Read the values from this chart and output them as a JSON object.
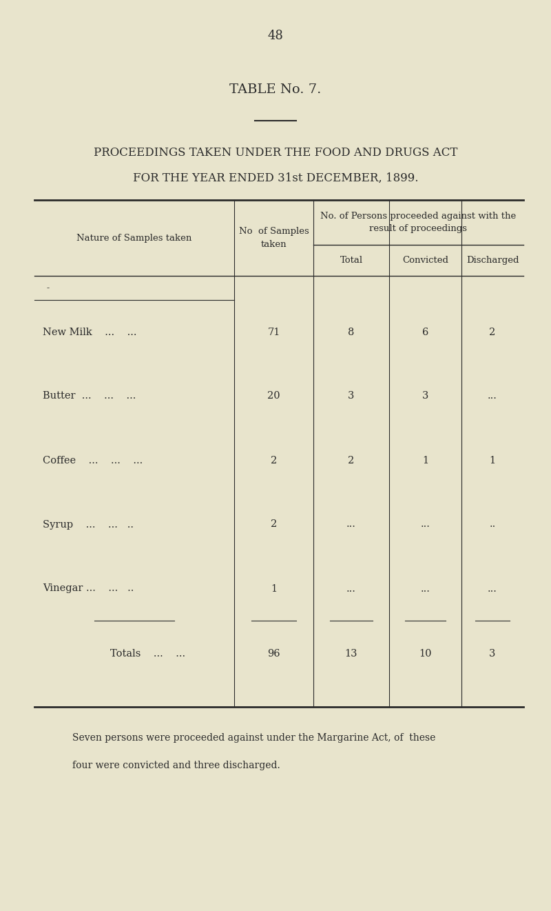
{
  "page_number": "48",
  "table_title": "TABLE No. 7.",
  "subtitle_line1": "PROCEEDINGS TAKEN UNDER THE FOOD AND DRUGS ACT",
  "subtitle_line2": "FOR THE YEAR ENDED 31st DECEMBER, 1899.",
  "col_header_1": "Nature of Samples taken",
  "col_header_2": "No  of Samples\ntaken",
  "col_header_3": "No. of Persons proceeded against with the\nresult of proceedings",
  "sub_header_total": "Total",
  "sub_header_convicted": "Convicted",
  "sub_header_discharged": "Discharged",
  "rows": [
    {
      "name": "New Milk",
      "dots1": "...",
      "dots2": "..",
      "samples": "71",
      "total": "8",
      "convicted": "6",
      "discharged": "2"
    },
    {
      "name": "Butter",
      "dots1": "..",
      "dots2": "...",
      "dots3": "...",
      "samples": "20",
      "total": "3",
      "convicted": "3",
      "discharged": "..."
    },
    {
      "name": "Coffee",
      "dots1": "...",
      "dots2": "...",
      "dots3": "...",
      "samples": "2",
      "total": "2",
      "convicted": "1",
      "discharged": "1"
    },
    {
      "name": "Syrup",
      "dots1": "...",
      "dots2": "...",
      "dots3": "..",
      "samples": "2",
      "total": "...",
      "convicted": "...",
      "discharged": ".."
    },
    {
      "name": "Vinegar ...",
      "dots1": "...",
      "dots2": "..",
      "samples": "1",
      "total": "...",
      "convicted": "...",
      "discharged": "..."
    }
  ],
  "totals_label": "Totals",
  "totals_dots": "...        ...",
  "totals_samples": "96",
  "totals_total": "13",
  "totals_convicted": "10",
  "totals_discharged": "3",
  "footnote_line1": "Seven persons were proceeded against under the Margarine Act, of  these",
  "footnote_line2": "four were convicted and three discharged.",
  "bg_color": "#e8e4cc",
  "text_color": "#2a2a2a",
  "line_color": "#2a2a2a"
}
